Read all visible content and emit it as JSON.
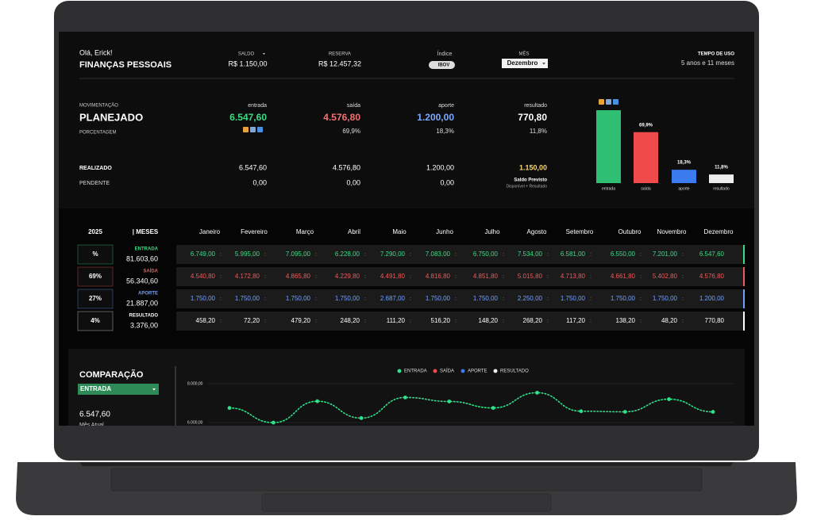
{
  "header": {
    "greeting": "Olá, Erick!",
    "title": "FINANÇAS PESSOAIS",
    "saldo_label": "SALDO",
    "saldo": "R$ 1.150,00",
    "reserva_label": "RESERVA",
    "reserva": "R$ 12.457,32",
    "indice_label": "Índice",
    "indice": "IBOV",
    "mes_label": "MÊS",
    "mes": "Dezembro",
    "tempo_label": "TEMPO DE USO",
    "tempo": "5 anos e 11 meses"
  },
  "summary": {
    "movimentacao_label": "MOVIMENTAÇÃO",
    "planejado_label": "PLANEJADO",
    "porcentagem_label": "PORCENTAGEM",
    "realizado_label": "REALIZADO",
    "pendente_label": "PENDENTE",
    "saldo_previsto": "Saldo Previsto",
    "saldo_previsto_note": "Disponível + Resultado",
    "columns": [
      {
        "label": "entrada",
        "planejado": "6.547,60",
        "color": "#3ddc84",
        "porcentagem": null,
        "realizado": "6.547,60",
        "pendente": "0,00"
      },
      {
        "label": "saída",
        "planejado": "4.576,80",
        "color": "#f07272",
        "porcentagem": "69,9%",
        "realizado": "4.576,80",
        "pendente": "0,00"
      },
      {
        "label": "aporte",
        "planejado": "1.200,00",
        "color": "#7aaaff",
        "porcentagem": "18,3%",
        "realizado": "1.200,00",
        "pendente": "0,00"
      },
      {
        "label": "resultado",
        "planejado": "770,80",
        "color": "#ffffff",
        "porcentagem": "11,8%",
        "realizado": "1.150,00",
        "pendente": null
      }
    ]
  },
  "bar_chart": {
    "type": "bar",
    "categories": [
      "entrada",
      "saída",
      "aporte",
      "resultado"
    ],
    "values": [
      100,
      69.9,
      18.3,
      11.8
    ],
    "value_labels": [
      null,
      "69,9%",
      "18,3%",
      "11,8%"
    ],
    "colors": [
      "#2ebf73",
      "#f04b4b",
      "#3a7bf0",
      "#eeeeee"
    ],
    "ylim": [
      0,
      100
    ]
  },
  "table": {
    "year": "2025",
    "months_label": "| MESES",
    "months": [
      "Janeiro",
      "Fevereiro",
      "Março",
      "Abril",
      "Maio",
      "Junho",
      "Julho",
      "Agosto",
      "Setembro",
      "Outubro",
      "Novembro",
      "Dezembro"
    ],
    "rows": [
      {
        "percent": "%",
        "name": "ENTRADA",
        "total": "81.603,60",
        "color": "#3ddc84",
        "values": [
          "6.749,00",
          "5.995,00",
          "7.095,00",
          "6.228,00",
          "7.290,00",
          "7.083,00",
          "6.750,00",
          "7.534,00",
          "6.581,00",
          "6.550,00",
          "7.201,00",
          "6.547,60"
        ]
      },
      {
        "percent": "69%",
        "name": "SAÍDA",
        "total": "56.340,60",
        "color": "#f05a5a",
        "values": [
          "4.540,80",
          "4.172,80",
          "4.865,80",
          "4.229,80",
          "4.491,80",
          "4.816,80",
          "4.851,80",
          "5.015,80",
          "4.713,80",
          "4.661,80",
          "5.402,80",
          "4.576,80"
        ]
      },
      {
        "percent": "27%",
        "name": "APORTE",
        "total": "21.887,00",
        "color": "#6fa0ff",
        "values": [
          "1.750,00",
          "1.750,00",
          "1.750,00",
          "1.750,00",
          "2.687,00",
          "1.750,00",
          "1.750,00",
          "2.250,00",
          "1.750,00",
          "1.750,00",
          "1.750,00",
          "1.200,00"
        ]
      },
      {
        "percent": "4%",
        "name": "RESULTADO",
        "total": "3.376,00",
        "color": "#ffffff",
        "values": [
          "458,20",
          "72,20",
          "479,20",
          "248,20",
          "111,20",
          "516,20",
          "148,20",
          "268,20",
          "117,20",
          "138,20",
          "48,20",
          "770,80"
        ]
      }
    ]
  },
  "comparison": {
    "title": "COMPARAÇÃO",
    "selected": "ENTRADA",
    "current_value": "6.547,60",
    "current_label": "Mês Atual",
    "chart": {
      "type": "line",
      "legend": [
        {
          "name": "ENTRADA",
          "color": "#2ee08a"
        },
        {
          "name": "SAÍDA",
          "color": "#f04b4b"
        },
        {
          "name": "APORTE",
          "color": "#3a7bf0"
        },
        {
          "name": "RESULTADO",
          "color": "#eeeeee"
        }
      ],
      "series": [
        {
          "name": "ENTRADA",
          "color": "#2ee08a",
          "values": [
            6749,
            5995,
            7095,
            6228,
            7290,
            7083,
            6750,
            7534,
            6581,
            6550,
            7201,
            6547.6
          ]
        }
      ],
      "ylim": [
        6000,
        8000
      ],
      "yticks": [
        {
          "value": 6000,
          "label": "6.000,00"
        },
        {
          "value": 8000,
          "label": "8.000,00"
        }
      ]
    }
  }
}
